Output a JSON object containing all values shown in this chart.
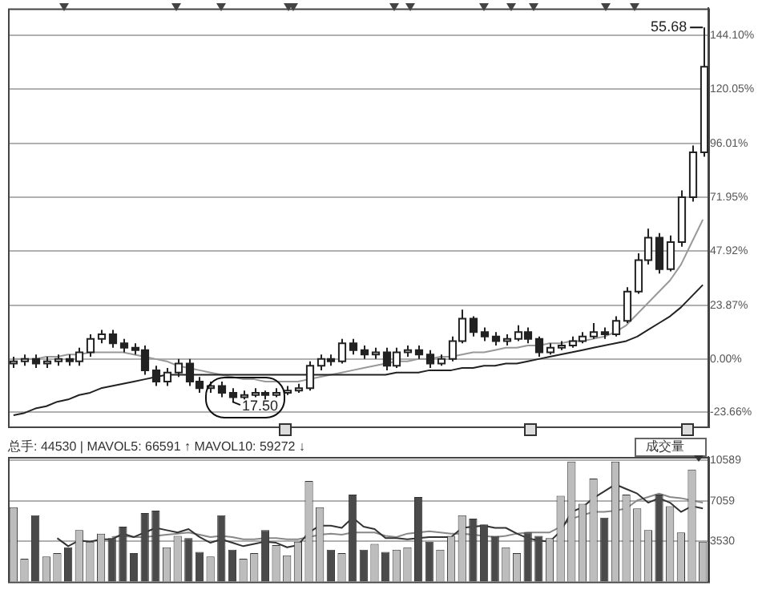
{
  "chart_data": [
    {
      "type": "candlestick",
      "categories": [
        null,
        null,
        null,
        null,
        null,
        null,
        null,
        null,
        null,
        null,
        null,
        null,
        null,
        null,
        null,
        null,
        null,
        null,
        null,
        null,
        null,
        null,
        null,
        null,
        null,
        null,
        null,
        null,
        null,
        null,
        null,
        null,
        null,
        null,
        null,
        null,
        null,
        null,
        null,
        null,
        null,
        null,
        null,
        null,
        null,
        null,
        null,
        null,
        null,
        null,
        null,
        null,
        null,
        null,
        null,
        null,
        null,
        null,
        null,
        null,
        null,
        null,
        null,
        null
      ],
      "color": "#222222",
      "colors": [
        "#ffffff",
        "#ffffff",
        "#222222",
        "#ffffff",
        "#ffffff",
        "#222222",
        "#ffffff",
        "#ffffff",
        "#ffffff",
        "#222222",
        "#222222",
        "#222222",
        "#222222",
        "#222222",
        "#ffffff",
        "#ffffff",
        "#222222",
        "#222222",
        "#ffffff",
        "#222222",
        "#222222",
        "#ffffff",
        "#ffffff",
        "#222222",
        "#ffffff",
        "#ffffff",
        "#ffffff",
        "#ffffff",
        "#ffffff",
        "#222222",
        "#ffffff",
        "#222222",
        "#222222",
        "#ffffff",
        "#222222",
        "#ffffff",
        "#ffffff",
        "#222222",
        "#222222",
        "#ffffff",
        "#ffffff",
        "#ffffff",
        "#222222",
        "#222222",
        "#222222",
        "#ffffff",
        "#ffffff",
        "#222222",
        "#222222",
        "#ffffff",
        "#ffffff",
        "#ffffff",
        "#ffffff",
        "#ffffff",
        "#222222",
        "#ffffff",
        "#ffffff",
        "#ffffff",
        "#ffffff",
        "#222222",
        "#ffffff",
        "#ffffff",
        "#ffffff",
        "#ffffff"
      ],
      "ohlc": [
        [
          -2,
          1,
          -4,
          -1
        ],
        [
          -1,
          2,
          -3,
          0
        ],
        [
          0,
          2,
          -4,
          -2
        ],
        [
          -2,
          1,
          -4,
          -1
        ],
        [
          -1,
          2,
          -3,
          0
        ],
        [
          0,
          2,
          -3,
          -1
        ],
        [
          -1,
          5,
          -3,
          3
        ],
        [
          3,
          11,
          1,
          9
        ],
        [
          9,
          13,
          7,
          11
        ],
        [
          11,
          13,
          5,
          7
        ],
        [
          7,
          9,
          3,
          5
        ],
        [
          5,
          7,
          2,
          4
        ],
        [
          4,
          6,
          -7,
          -5
        ],
        [
          -5,
          -3,
          -12,
          -10
        ],
        [
          -10,
          -4,
          -12,
          -6
        ],
        [
          -6,
          0,
          -8,
          -2
        ],
        [
          -2,
          0,
          -12,
          -10
        ],
        [
          -10,
          -8,
          -15,
          -13
        ],
        [
          -13,
          -10,
          -15,
          -12
        ],
        [
          -12,
          -10,
          -17,
          -15
        ],
        [
          -15,
          -13,
          -19,
          -17
        ],
        [
          -17,
          -14,
          -18,
          -16
        ],
        [
          -16,
          -13,
          -17,
          -15
        ],
        [
          -15,
          -14,
          -18,
          -16
        ],
        [
          -16,
          -13,
          -17,
          -15
        ],
        [
          -15,
          -12,
          -16,
          -14
        ],
        [
          -14,
          -11,
          -15,
          -13
        ],
        [
          -13,
          -1,
          -14,
          -3
        ],
        [
          -3,
          2,
          -5,
          0
        ],
        [
          0,
          2,
          -3,
          -1
        ],
        [
          -1,
          9,
          -2,
          7
        ],
        [
          7,
          9,
          2,
          4
        ],
        [
          4,
          6,
          0,
          2
        ],
        [
          2,
          5,
          0,
          3
        ],
        [
          3,
          5,
          -5,
          -3
        ],
        [
          -3,
          5,
          -4,
          3
        ],
        [
          3,
          6,
          1,
          4
        ],
        [
          4,
          6,
          0,
          2
        ],
        [
          2,
          4,
          -4,
          -2
        ],
        [
          -2,
          2,
          -3,
          0
        ],
        [
          0,
          10,
          -1,
          8
        ],
        [
          8,
          22,
          7,
          18
        ],
        [
          18,
          19,
          10,
          12
        ],
        [
          12,
          14,
          8,
          10
        ],
        [
          10,
          12,
          6,
          8
        ],
        [
          8,
          11,
          6,
          9
        ],
        [
          9,
          15,
          8,
          12
        ],
        [
          12,
          14,
          7,
          9
        ],
        [
          9,
          10,
          1,
          3
        ],
        [
          3,
          7,
          2,
          5
        ],
        [
          5,
          8,
          4,
          6
        ],
        [
          6,
          10,
          5,
          8
        ],
        [
          8,
          12,
          7,
          10
        ],
        [
          10,
          16,
          9,
          12
        ],
        [
          12,
          14,
          9,
          11
        ],
        [
          11,
          19,
          10,
          17
        ],
        [
          17,
          32,
          16,
          30
        ],
        [
          30,
          47,
          29,
          44
        ],
        [
          44,
          58,
          42,
          54
        ],
        [
          54,
          56,
          38,
          40
        ],
        [
          40,
          55,
          39,
          52
        ],
        [
          52,
          75,
          50,
          72
        ],
        [
          72,
          95,
          70,
          92
        ],
        [
          92,
          147.5,
          90,
          130
        ]
      ],
      "series": [
        {
          "type": "line",
          "color": "#222222",
          "values": [
            -25,
            -24,
            -22,
            -21,
            -19,
            -18,
            -16,
            -15,
            -13,
            -12,
            -11,
            -10,
            -9,
            -8,
            -7,
            -7,
            -7,
            -7,
            -7,
            -7,
            -7,
            -7,
            -7,
            -7,
            -7,
            -7,
            -7,
            -7,
            -7,
            -7,
            -7,
            -7,
            -7,
            -7,
            -7,
            -6,
            -6,
            -6,
            -5,
            -5,
            -5,
            -4,
            -4,
            -3,
            -3,
            -2,
            -2,
            -1,
            0,
            1,
            2,
            3,
            4,
            5,
            6,
            7,
            8,
            10,
            13,
            16,
            19,
            23,
            28,
            33
          ]
        },
        {
          "type": "line",
          "color": "#999999",
          "values": [
            0,
            0,
            0,
            1,
            1,
            2,
            2,
            3,
            3,
            3,
            3,
            2,
            1,
            0,
            -1,
            -3,
            -4,
            -5,
            -6,
            -7,
            -8,
            -9,
            -9,
            -10,
            -10,
            -10,
            -10,
            -9,
            -8,
            -7,
            -6,
            -5,
            -4,
            -3,
            -2,
            -1,
            -1,
            0,
            0,
            1,
            1,
            2,
            3,
            3,
            4,
            5,
            5,
            6,
            6,
            7,
            7,
            8,
            8,
            9,
            10,
            12,
            15,
            20,
            25,
            30,
            35,
            42,
            52,
            62
          ]
        }
      ],
      "ylim": [
        -30,
        156
      ],
      "yticks": [
        {
          "value": -23.66,
          "label": "-23.66%"
        },
        {
          "value": 0,
          "label": "0.00%"
        },
        {
          "value": 23.87,
          "label": "23.87%"
        },
        {
          "value": 47.92,
          "label": "47.92%"
        },
        {
          "value": 71.95,
          "label": "71.95%"
        },
        {
          "value": 96.01,
          "label": "96.01%"
        },
        {
          "value": 120.05,
          "label": "120.05%"
        },
        {
          "value": 144.1,
          "label": "144.10%"
        }
      ],
      "grid": "y",
      "tick_labels": "y",
      "marker": "none",
      "line_style": "solid",
      "legend": false,
      "annotations": [
        "55.68",
        "17.50"
      ]
    },
    {
      "type": "bar",
      "categories": [
        null,
        null,
        null,
        null,
        null,
        null,
        null,
        null,
        null,
        null,
        null,
        null,
        null,
        null,
        null,
        null,
        null,
        null,
        null,
        null,
        null,
        null,
        null,
        null,
        null,
        null,
        null,
        null,
        null,
        null,
        null,
        null,
        null,
        null,
        null,
        null,
        null,
        null,
        null,
        null,
        null,
        null,
        null,
        null,
        null,
        null,
        null,
        null,
        null,
        null,
        null,
        null,
        null,
        null,
        null,
        null,
        null,
        null,
        null,
        null,
        null,
        null,
        null,
        null
      ],
      "series": [
        {
          "type": "bar",
          "colors": [
            "#bdbdbd",
            "#bdbdbd",
            "#4a4a4a",
            "#bdbdbd",
            "#bdbdbd",
            "#4a4a4a",
            "#bdbdbd",
            "#bdbdbd",
            "#bdbdbd",
            "#4a4a4a",
            "#4a4a4a",
            "#4a4a4a",
            "#4a4a4a",
            "#4a4a4a",
            "#bdbdbd",
            "#bdbdbd",
            "#4a4a4a",
            "#4a4a4a",
            "#bdbdbd",
            "#4a4a4a",
            "#4a4a4a",
            "#bdbdbd",
            "#bdbdbd",
            "#4a4a4a",
            "#bdbdbd",
            "#bdbdbd",
            "#bdbdbd",
            "#bdbdbd",
            "#bdbdbd",
            "#4a4a4a",
            "#bdbdbd",
            "#4a4a4a",
            "#4a4a4a",
            "#bdbdbd",
            "#4a4a4a",
            "#bdbdbd",
            "#bdbdbd",
            "#4a4a4a",
            "#4a4a4a",
            "#bdbdbd",
            "#bdbdbd",
            "#bdbdbd",
            "#4a4a4a",
            "#4a4a4a",
            "#4a4a4a",
            "#bdbdbd",
            "#bdbdbd",
            "#4a4a4a",
            "#4a4a4a",
            "#bdbdbd",
            "#bdbdbd",
            "#bdbdbd",
            "#bdbdbd",
            "#bdbdbd",
            "#4a4a4a",
            "#bdbdbd",
            "#bdbdbd",
            "#bdbdbd",
            "#bdbdbd",
            "#4a4a4a",
            "#bdbdbd",
            "#bdbdbd",
            "#bdbdbd",
            "#bdbdbd"
          ],
          "values": [
            6500,
            2000,
            5800,
            2200,
            2500,
            3000,
            4500,
            3500,
            4200,
            3800,
            4800,
            2500,
            6000,
            6200,
            3000,
            4000,
            3800,
            2600,
            2200,
            5800,
            2800,
            2000,
            2500,
            4500,
            3200,
            2300,
            3500,
            8800,
            6500,
            2800,
            2500,
            7600,
            2800,
            3300,
            2600,
            2800,
            3000,
            7400,
            3500,
            2800,
            4000,
            5800,
            5500,
            5000,
            4000,
            3000,
            2500,
            4300,
            4000,
            3800,
            7500,
            10500,
            6800,
            9000,
            5600,
            10500,
            7600,
            6400,
            4500,
            7600,
            6600,
            4300,
            9800,
            3500
          ]
        },
        {
          "type": "line",
          "color": "#333333",
          "values": [
            null,
            null,
            null,
            null,
            3800,
            3100,
            3600,
            3500,
            3700,
            3700,
            4200,
            3900,
            4300,
            4700,
            4500,
            4300,
            4600,
            3900,
            3400,
            3700,
            3400,
            3100,
            3300,
            3500,
            3400,
            3000,
            3200,
            4300,
            4900,
            4900,
            4700,
            5600,
            4800,
            4600,
            3800,
            3800,
            3700,
            3800,
            3900,
            3900,
            3900,
            4700,
            4800,
            4900,
            4700,
            4700,
            4200,
            3800,
            3600,
            3500,
            4400,
            6100,
            6500,
            7300,
            7900,
            8500,
            8100,
            7700,
            6900,
            7300,
            6900,
            6100,
            6600,
            6400
          ]
        },
        {
          "type": "line",
          "color": "#888888",
          "values": [
            null,
            null,
            null,
            null,
            null,
            null,
            null,
            null,
            null,
            3900,
            4000,
            3900,
            3900,
            4000,
            4100,
            4200,
            4300,
            4100,
            3900,
            4000,
            3900,
            3700,
            3700,
            3800,
            3800,
            3700,
            3700,
            3900,
            4100,
            4200,
            4100,
            4300,
            4300,
            4300,
            4000,
            3900,
            4200,
            4300,
            4400,
            4300,
            4200,
            4200,
            4100,
            4000,
            3900,
            4000,
            4200,
            4300,
            4300,
            4300,
            4800,
            5500,
            5800,
            6100,
            6100,
            6200,
            6400,
            7100,
            7400,
            7700,
            7400,
            7300,
            7100,
            6900
          ]
        }
      ],
      "ylim": [
        0,
        10900
      ],
      "yticks": [
        3530,
        7059,
        10589
      ],
      "grid": "y",
      "tick_labels": "y",
      "marker": "none",
      "line_style": "solid",
      "legend": false,
      "annotations": [
        "总手: 44530 | MAVOL5: 66591 ↑ MAVOL10: 59272 ↓",
        "成交量"
      ]
    }
  ]
}
